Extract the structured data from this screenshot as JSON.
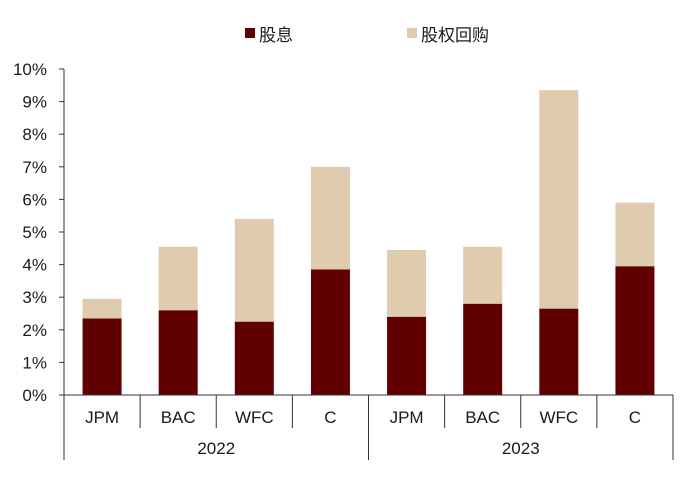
{
  "chart_data": {
    "type": "bar",
    "stacked": true,
    "title": "",
    "xlabel": "",
    "ylabel": "",
    "ylim": [
      0,
      10
    ],
    "y_ticks": [
      "0%",
      "1%",
      "2%",
      "3%",
      "4%",
      "5%",
      "6%",
      "7%",
      "8%",
      "9%",
      "10%"
    ],
    "grid": false,
    "legend_position": "top",
    "groups": [
      {
        "label": "2022",
        "categories": [
          "JPM",
          "BAC",
          "WFC",
          "C"
        ]
      },
      {
        "label": "2023",
        "categories": [
          "JPM",
          "BAC",
          "WFC",
          "C"
        ]
      }
    ],
    "categories": [
      "JPM",
      "BAC",
      "WFC",
      "C",
      "JPM",
      "BAC",
      "WFC",
      "C"
    ],
    "series": [
      {
        "name": "股息",
        "color": "#600000",
        "values": [
          2.35,
          2.6,
          2.25,
          3.85,
          2.4,
          2.8,
          2.65,
          3.95
        ]
      },
      {
        "name": "股权回购",
        "color": "#DFCBAD",
        "values": [
          0.6,
          1.95,
          3.15,
          3.15,
          2.05,
          1.75,
          6.7,
          1.95
        ]
      }
    ],
    "totals": [
      2.95,
      4.55,
      5.4,
      7.0,
      4.45,
      4.55,
      9.35,
      5.9
    ]
  },
  "legend": {
    "items": [
      {
        "label": "股息",
        "color": "#600000"
      },
      {
        "label": "股权回购",
        "color": "#DFCBAD"
      }
    ]
  }
}
